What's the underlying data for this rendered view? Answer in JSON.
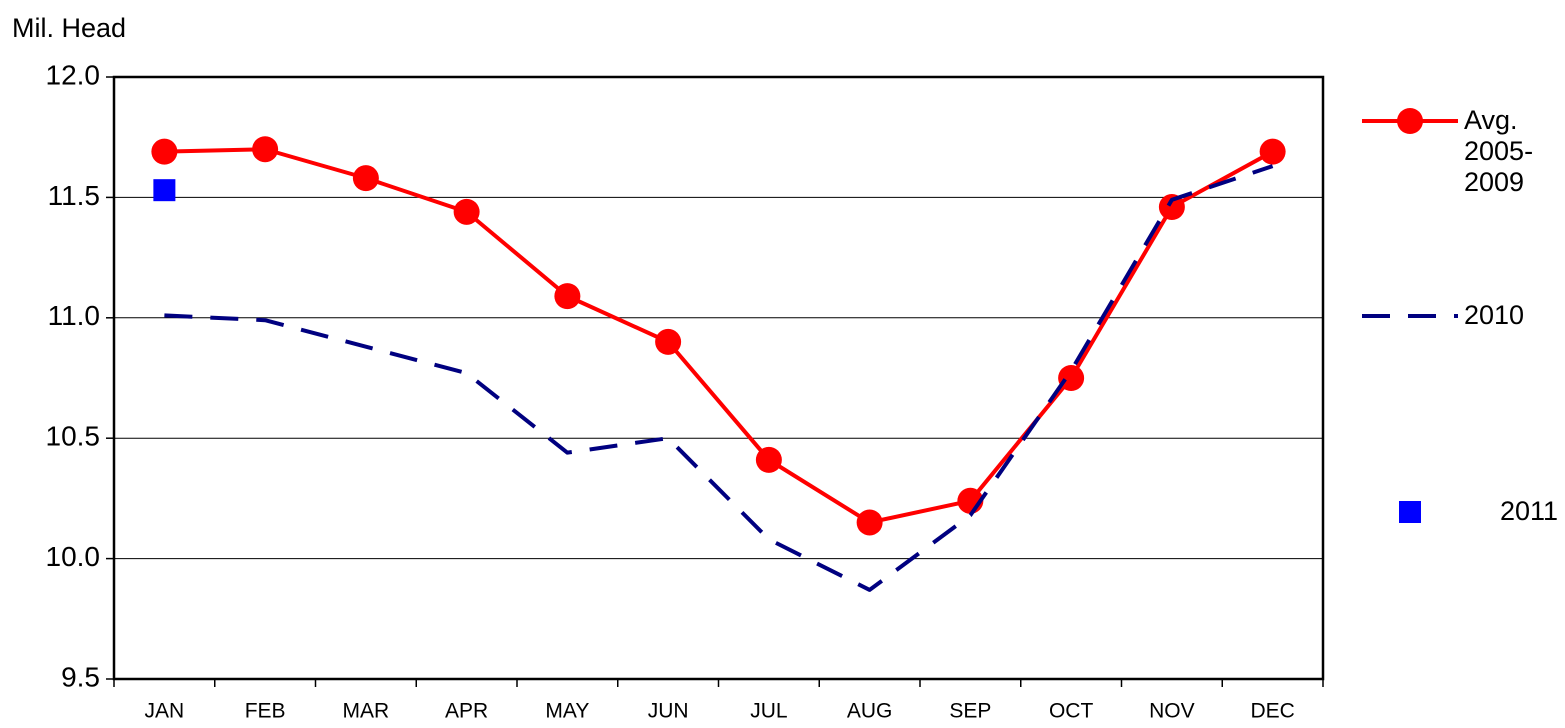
{
  "chart_data": {
    "type": "line",
    "y_label": "Mil. Head",
    "categories": [
      "JAN",
      "FEB",
      "MAR",
      "APR",
      "MAY",
      "JUN",
      "JUL",
      "AUG",
      "SEP",
      "OCT",
      "NOV",
      "DEC"
    ],
    "series": [
      {
        "name": "Avg. 2005-2009",
        "color": "#ff0000",
        "line": "solid",
        "marker": "circle",
        "values": [
          11.69,
          11.7,
          11.58,
          11.44,
          11.09,
          10.9,
          10.41,
          10.15,
          10.24,
          10.75,
          11.46,
          11.69
        ]
      },
      {
        "name": "2010",
        "color": "#000080",
        "line": "dashed",
        "marker": "none",
        "values": [
          11.01,
          10.99,
          10.88,
          10.77,
          10.44,
          10.5,
          10.08,
          9.87,
          10.18,
          10.78,
          11.49,
          11.63
        ]
      },
      {
        "name": "2011",
        "color": "#0000ff",
        "line": "none",
        "marker": "square",
        "values": [
          11.53,
          null,
          null,
          null,
          null,
          null,
          null,
          null,
          null,
          null,
          null,
          null
        ]
      }
    ],
    "ylim": [
      9.5,
      12.0
    ],
    "yticks": [
      9.5,
      {
        "value": 10.0,
        "label": "10.0"
      },
      10.5,
      {
        "value": 11.0,
        "label": "11.0"
      },
      11.5,
      {
        "value": 12.0,
        "label": "12.0"
      }
    ],
    "grid": true,
    "legend": "right"
  }
}
